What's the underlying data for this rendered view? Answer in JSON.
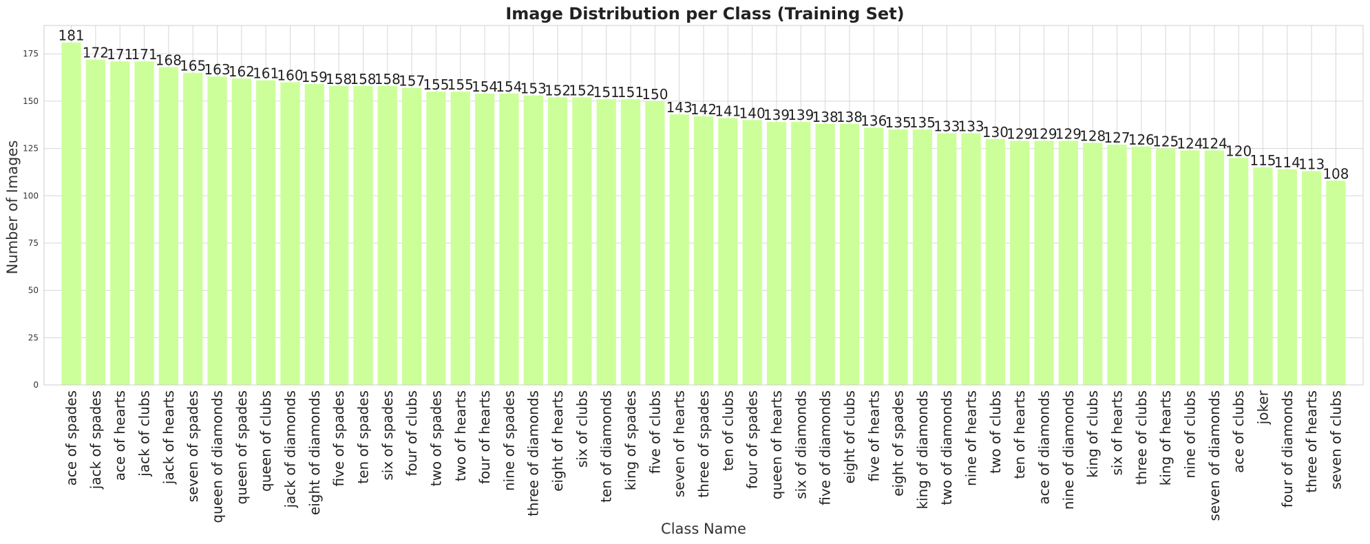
{
  "chart_data": {
    "type": "bar",
    "title": "Image Distribution per Class (Training Set)",
    "xlabel": "Class Name",
    "ylabel": "Number of Images",
    "ylim": [
      0,
      190
    ],
    "yticks": [
      0,
      25,
      50,
      75,
      100,
      125,
      150,
      175
    ],
    "grid": true,
    "bar_color": "#ccff99",
    "categories": [
      "ace of spades",
      "jack of spades",
      "ace of hearts",
      "jack of clubs",
      "jack of hearts",
      "seven of spades",
      "queen of diamonds",
      "queen of spades",
      "queen of clubs",
      "jack of diamonds",
      "eight of diamonds",
      "five of spades",
      "ten of spades",
      "six of spades",
      "four of clubs",
      "two of spades",
      "two of hearts",
      "four of hearts",
      "nine of spades",
      "three of diamonds",
      "eight of hearts",
      "six of clubs",
      "ten of diamonds",
      "king of spades",
      "five of clubs",
      "seven of hearts",
      "three of spades",
      "ten of clubs",
      "four of spades",
      "queen of hearts",
      "six of diamonds",
      "five of diamonds",
      "eight of clubs",
      "five of hearts",
      "eight of spades",
      "king of diamonds",
      "two of diamonds",
      "nine of hearts",
      "two of clubs",
      "ten of hearts",
      "ace of diamonds",
      "nine of diamonds",
      "king of clubs",
      "six of hearts",
      "three of clubs",
      "king of hearts",
      "nine of clubs",
      "seven of diamonds",
      "ace of clubs",
      "joker",
      "four of diamonds",
      "three of hearts",
      "seven of clubs"
    ],
    "values": [
      181,
      172,
      171,
      171,
      168,
      165,
      163,
      162,
      161,
      160,
      159,
      158,
      158,
      158,
      157,
      155,
      155,
      154,
      154,
      153,
      152,
      152,
      151,
      151,
      150,
      143,
      142,
      141,
      140,
      139,
      139,
      138,
      138,
      136,
      135,
      135,
      133,
      133,
      130,
      129,
      129,
      129,
      128,
      127,
      126,
      125,
      124,
      124,
      120,
      115,
      114,
      113,
      108
    ]
  }
}
